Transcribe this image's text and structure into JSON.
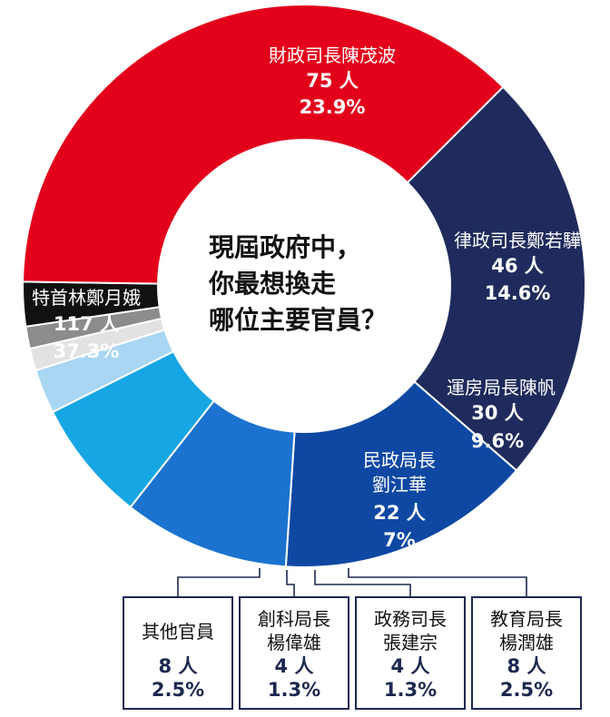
{
  "chart_data": {
    "type": "pie",
    "title": "現屆政府中，你最想換走哪位主要官員？",
    "title_lines": [
      "現屆政府中，",
      "你最想換走",
      "哪位主要官員？"
    ],
    "slices": [
      {
        "name": "財政司長陳茂波",
        "count": 75,
        "count_label": "75人",
        "percent": 23.9,
        "percent_label": "23.9%",
        "color": "#1f2b5c"
      },
      {
        "name": "律政司長鄭若驊",
        "count": 46,
        "count_label": "46人",
        "percent": 14.6,
        "percent_label": "14.6%",
        "color": "#0e48a3"
      },
      {
        "name": "運房局長陳帆",
        "count": 30,
        "count_label": "30人",
        "percent": 9.6,
        "percent_label": "9.6%",
        "color": "#1b73cf"
      },
      {
        "name": "民政局長劉江華",
        "count": 22,
        "count_label": "22人",
        "percent": 7,
        "percent_label": "7%",
        "color": "#17a6e4"
      },
      {
        "name": "教育局長楊潤雄",
        "count": 8,
        "count_label": "8人",
        "percent": 2.5,
        "percent_label": "2.5%",
        "color": "#a9d6f3"
      },
      {
        "name": "政務司長張建宗",
        "count": 4,
        "count_label": "4人",
        "percent": 1.3,
        "percent_label": "1.3%",
        "color": "#e2e2e2"
      },
      {
        "name": "創科局長楊偉雄",
        "count": 4,
        "count_label": "4人",
        "percent": 1.3,
        "percent_label": "1.3%",
        "color": "#8c8c8c"
      },
      {
        "name": "其他官員",
        "count": 8,
        "count_label": "8人",
        "percent": 2.5,
        "percent_label": "2.5%",
        "color": "#111111"
      },
      {
        "name": "特首林鄭月娥",
        "count": 117,
        "count_label": "117人",
        "percent": 37.3,
        "percent_label": "37.3%",
        "color": "#e3001b"
      }
    ]
  },
  "inner_labels": [
    {
      "lines": [
        "財政司長陳茂波"
      ],
      "count": "75 人",
      "percent": "23.9%"
    },
    {
      "lines": [
        "律政司長鄭若驊"
      ],
      "count": "46 人",
      "percent": "14.6%"
    },
    {
      "lines": [
        "運房局長陳帆"
      ],
      "count": "30 人",
      "percent": "9.6%"
    },
    {
      "lines": [
        "民政局長",
        "劉江華"
      ],
      "count": "22 人",
      "percent": "7%"
    },
    {
      "lines": [
        "特首林鄭月娥"
      ],
      "count": "117 人",
      "percent": "37.3%"
    }
  ],
  "callouts": [
    {
      "name": "其他官員",
      "count": "8 人",
      "percent": "2.5%"
    },
    {
      "name": "創科局長\n楊偉雄",
      "count": "4 人",
      "percent": "1.3%"
    },
    {
      "name": "政務司長\n張建宗",
      "count": "4 人",
      "percent": "1.3%"
    },
    {
      "name": "教育局長\n楊潤雄",
      "count": "8 人",
      "percent": "2.5%"
    }
  ],
  "colors": {
    "box_border": "#1c2850",
    "value_text": "#1c2850",
    "leader": "#1c2850"
  }
}
